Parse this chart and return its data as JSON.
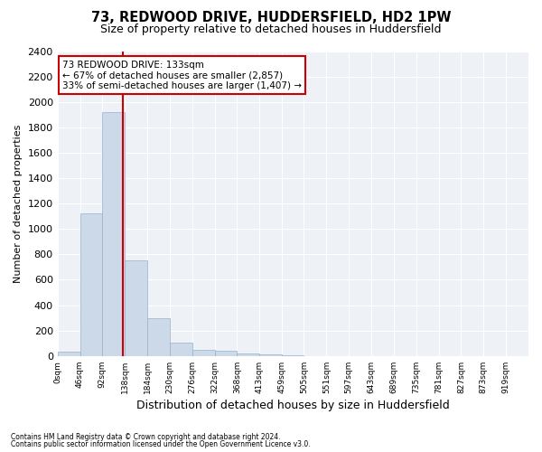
{
  "title": "73, REDWOOD DRIVE, HUDDERSFIELD, HD2 1PW",
  "subtitle": "Size of property relative to detached houses in Huddersfield",
  "xlabel": "Distribution of detached houses by size in Huddersfield",
  "ylabel": "Number of detached properties",
  "bin_edges": [
    0,
    46,
    92,
    138,
    184,
    230,
    276,
    322,
    368,
    413,
    459,
    505,
    551,
    597,
    643,
    689,
    735,
    781,
    827,
    873,
    919,
    965
  ],
  "bar_heights": [
    35,
    1120,
    1920,
    750,
    300,
    105,
    45,
    40,
    20,
    15,
    5,
    2,
    0,
    0,
    0,
    0,
    0,
    0,
    0,
    0,
    0
  ],
  "bar_color": "#ccd9e8",
  "bar_edgecolor": "#9ab0c8",
  "vline_x": 133,
  "vline_color": "#cc0000",
  "annotation_title": "73 REDWOOD DRIVE: 133sqm",
  "annotation_line1": "← 67% of detached houses are smaller (2,857)",
  "annotation_line2": "33% of semi-detached houses are larger (1,407) →",
  "annotation_box_color": "#cc0000",
  "ylim": [
    0,
    2400
  ],
  "yticks": [
    0,
    200,
    400,
    600,
    800,
    1000,
    1200,
    1400,
    1600,
    1800,
    2000,
    2200,
    2400
  ],
  "footer_line1": "Contains HM Land Registry data © Crown copyright and database right 2024.",
  "footer_line2": "Contains public sector information licensed under the Open Government Licence v3.0.",
  "bg_color": "#ffffff",
  "plot_bg_color": "#eef2f7",
  "grid_color": "#ffffff",
  "title_fontsize": 10.5,
  "subtitle_fontsize": 9,
  "ylabel_fontsize": 8,
  "xlabel_fontsize": 9,
  "ytick_fontsize": 8,
  "xtick_fontsize": 6.5
}
